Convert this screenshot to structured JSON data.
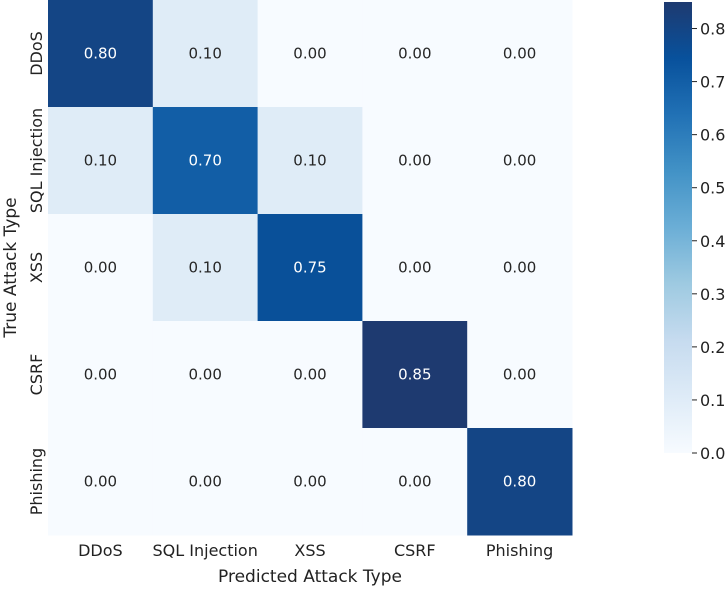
{
  "chart_data": {
    "type": "heatmap",
    "xlabel": "Predicted Attack Type",
    "ylabel": "True Attack Type",
    "x_categories": [
      "DDoS",
      "SQL Injection",
      "XSS",
      "CSRF",
      "Phishing"
    ],
    "y_categories": [
      "DDoS",
      "SQL Injection",
      "XSS",
      "CSRF",
      "Phishing"
    ],
    "values": [
      [
        0.8,
        0.1,
        0.0,
        0.0,
        0.0
      ],
      [
        0.1,
        0.7,
        0.1,
        0.0,
        0.0
      ],
      [
        0.0,
        0.1,
        0.75,
        0.0,
        0.0
      ],
      [
        0.0,
        0.0,
        0.0,
        0.85,
        0.0
      ],
      [
        0.0,
        0.0,
        0.0,
        0.0,
        0.8
      ]
    ],
    "value_labels": [
      [
        "0.80",
        "0.10",
        "0.00",
        "0.00",
        "0.00"
      ],
      [
        "0.10",
        "0.70",
        "0.10",
        "0.00",
        "0.00"
      ],
      [
        "0.00",
        "0.10",
        "0.75",
        "0.00",
        "0.00"
      ],
      [
        "0.00",
        "0.00",
        "0.00",
        "0.85",
        "0.00"
      ],
      [
        "0.00",
        "0.00",
        "0.00",
        "0.00",
        "0.80"
      ]
    ],
    "colorbar": {
      "range": [
        0.0,
        0.85
      ],
      "ticks": [
        0.0,
        0.1,
        0.2,
        0.3,
        0.4,
        0.5,
        0.6,
        0.7,
        0.8
      ],
      "tick_labels": [
        "0.0",
        "0.1",
        "0.2",
        "0.3",
        "0.4",
        "0.5",
        "0.6",
        "0.7",
        "0.8"
      ],
      "colormap": "Blues"
    },
    "grid": false,
    "legend": "colorbar-right"
  }
}
